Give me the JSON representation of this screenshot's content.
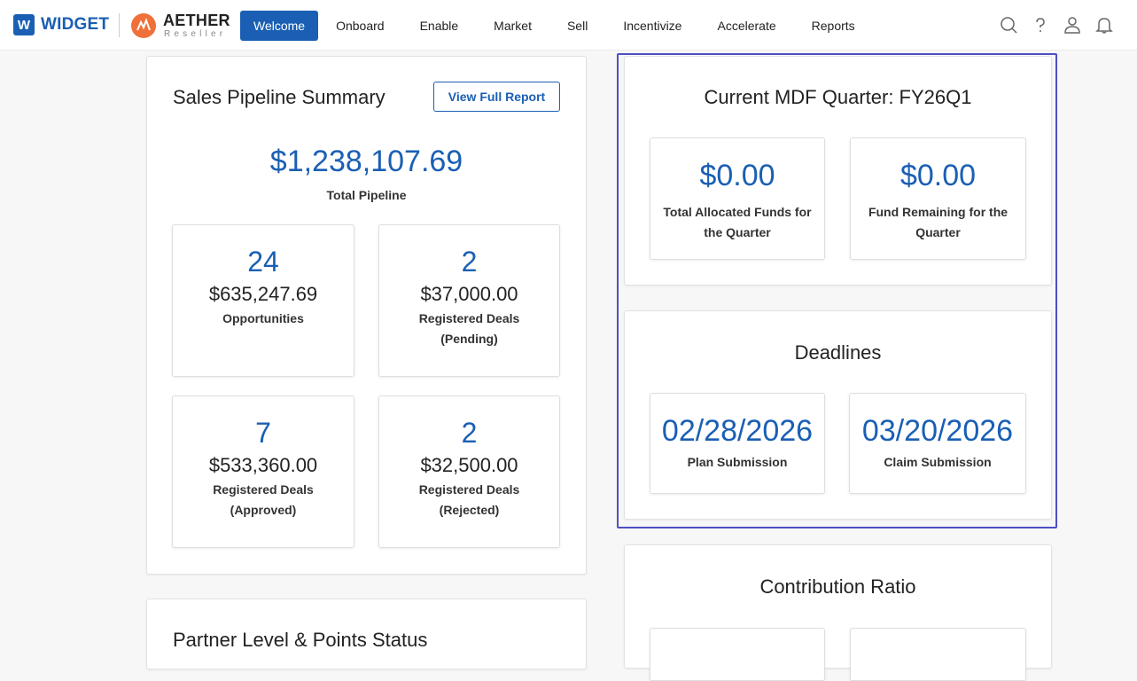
{
  "brand": {
    "w_logo": "W",
    "widget": "WIDGET",
    "aether": "AETHER",
    "aether_sub": "Reseller"
  },
  "nav": [
    "Welcome",
    "Onboard",
    "Enable",
    "Market",
    "Sell",
    "Incentivize",
    "Accelerate",
    "Reports"
  ],
  "pipeline": {
    "title": "Sales Pipeline Summary",
    "button": "View Full Report",
    "total": "$1,238,107.69",
    "total_label": "Total Pipeline",
    "cells": [
      {
        "count": "24",
        "amount": "$635,247.69",
        "label1": "Opportunities",
        "label2": ""
      },
      {
        "count": "2",
        "amount": "$37,000.00",
        "label1": "Registered Deals",
        "label2": "(Pending)"
      },
      {
        "count": "7",
        "amount": "$533,360.00",
        "label1": "Registered Deals",
        "label2": "(Approved)"
      },
      {
        "count": "2",
        "amount": "$32,500.00",
        "label1": "Registered Deals",
        "label2": "(Rejected)"
      }
    ]
  },
  "mdf": {
    "title": "Current MDF Quarter: FY26Q1",
    "cells": [
      {
        "value": "$0.00",
        "label1": "Total Allocated Funds for",
        "label2": "the Quarter"
      },
      {
        "value": "$0.00",
        "label1": "Fund Remaining for the",
        "label2": "Quarter"
      }
    ]
  },
  "deadlines": {
    "title": "Deadlines",
    "cells": [
      {
        "value": "02/28/2026",
        "label": "Plan Submission"
      },
      {
        "value": "03/20/2026",
        "label": "Claim Submission"
      }
    ]
  },
  "contribution": {
    "title": "Contribution Ratio"
  },
  "partner": {
    "title": "Partner Level & Points Status"
  },
  "colors": {
    "accent": "#1a5fb4",
    "highlight": "#4d4fc4",
    "aether_orange": "#f0703a"
  },
  "icons": [
    "search-icon",
    "help-icon",
    "user-icon",
    "bell-icon"
  ]
}
